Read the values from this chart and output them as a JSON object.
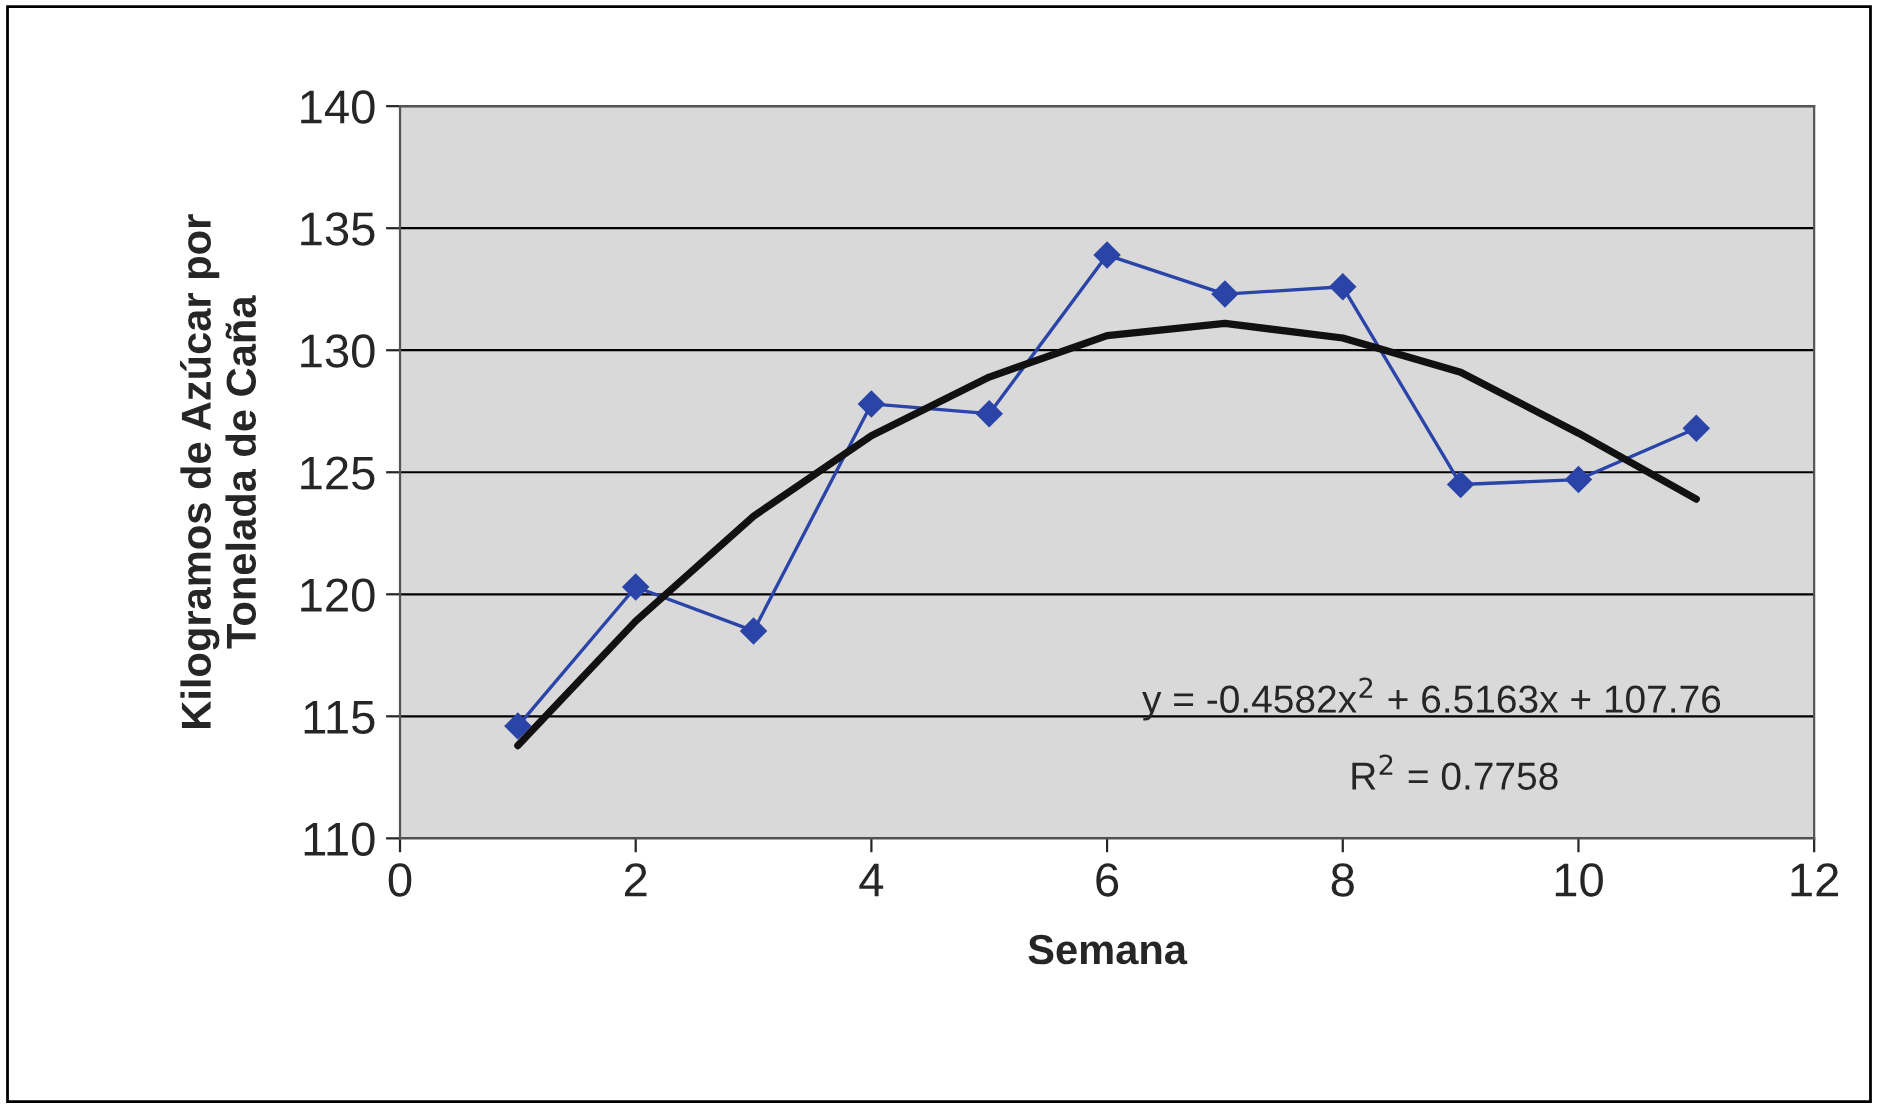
{
  "chart_data": {
    "type": "line",
    "xlabel": "Semana",
    "ylabel": "Kilogramos de Azúcar por\nTonelada de Caña",
    "xlim": [
      0,
      12
    ],
    "xticks": [
      0,
      2,
      4,
      6,
      8,
      10,
      12
    ],
    "ylim": [
      110,
      140
    ],
    "yticks": [
      110,
      115,
      120,
      125,
      130,
      135,
      140
    ],
    "grid": "y",
    "marker": "diamond",
    "line_style": "solid",
    "series": [
      {
        "color": "#2a44a8",
        "x": [
          1,
          2,
          3,
          4,
          5,
          6,
          7,
          8,
          9,
          10,
          11
        ],
        "values": [
          114.6,
          120.3,
          118.5,
          127.8,
          127.4,
          133.9,
          132.3,
          132.6,
          124.5,
          124.7,
          126.8
        ]
      },
      {
        "type": "line",
        "marker": "none",
        "color": "#111111",
        "x": [
          1,
          2,
          3,
          4,
          5,
          6,
          7,
          8,
          9,
          10,
          11
        ],
        "values": [
          113.8,
          118.9,
          123.2,
          126.5,
          128.9,
          130.6,
          131.1,
          130.5,
          129.1,
          126.6,
          123.9
        ]
      }
    ],
    "annotations": [
      "y = -0.4582x$^{2}$ + 6.5163x + 107.76",
      "R$^{2}$ = 0.7758"
    ]
  }
}
